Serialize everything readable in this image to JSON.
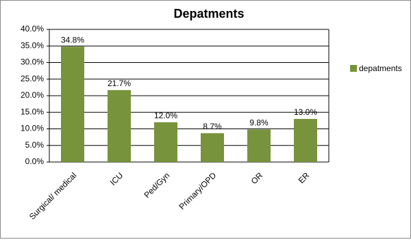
{
  "chart_data": {
    "type": "bar",
    "title": "Depatments",
    "categories": [
      "Surgical/ medical",
      "ICU",
      "Ped/Gyn",
      "Primary/OPD",
      "OR",
      "ER"
    ],
    "series": [
      {
        "name": "depatments",
        "color": "#77933c",
        "values": [
          34.8,
          21.7,
          12.0,
          8.7,
          9.8,
          13.0
        ],
        "value_labels": [
          "34.8%",
          "21.7%",
          "12.0%",
          "8.7%",
          "9.8%",
          "13.0%"
        ]
      }
    ],
    "ylim": [
      0,
      40
    ],
    "yticks": [
      {
        "value": 0,
        "label": "0.0%"
      },
      {
        "value": 5,
        "label": "5.0%"
      },
      {
        "value": 10,
        "label": "10.0%"
      },
      {
        "value": 15,
        "label": "15.0%"
      },
      {
        "value": 20,
        "label": "20.0%"
      },
      {
        "value": 25,
        "label": "25.0%"
      },
      {
        "value": 30,
        "label": "30.0%"
      },
      {
        "value": 35,
        "label": "35.0%"
      },
      {
        "value": 40,
        "label": "40.0%"
      }
    ],
    "grid": true,
    "legend": "right"
  }
}
